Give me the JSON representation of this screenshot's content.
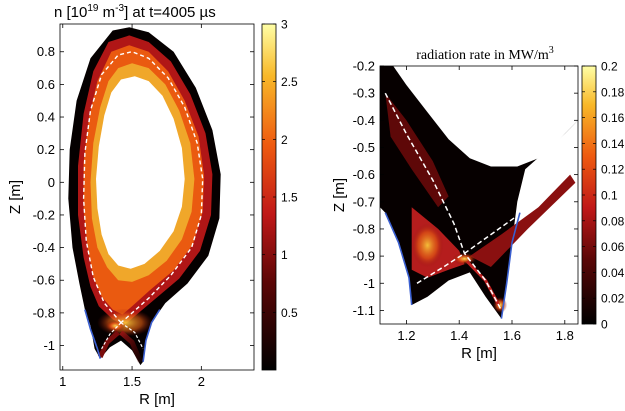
{
  "chart_data": [
    {
      "type": "heatmap",
      "title_parts": [
        "n [10",
        "19",
        " m",
        "-3",
        "] at t=4005 µs"
      ],
      "xlabel": "R [m]",
      "ylabel": "Z [m]",
      "xlim": [
        0.98,
        2.38
      ],
      "ylim": [
        -1.15,
        0.97
      ],
      "xticks": [
        1,
        1.5,
        2
      ],
      "yticks": [
        -1,
        -0.8,
        -0.6,
        -0.4,
        -0.2,
        0,
        0.2,
        0.4,
        0.6,
        0.8
      ],
      "colorbar": {
        "min": 0,
        "max": 3,
        "ticks": [
          0.5,
          1,
          1.5,
          2,
          2.5,
          3
        ]
      },
      "separatrix_style": "dashed-white",
      "wall_color": "#3a5fd0"
    },
    {
      "type": "heatmap",
      "title_parts": [
        "radiation rate in MW/m",
        "3"
      ],
      "xlabel": "R [m]",
      "ylabel": "Z [m]",
      "xlim": [
        1.1,
        1.85
      ],
      "ylim": [
        -1.15,
        -0.2
      ],
      "xticks": [
        1.2,
        1.4,
        1.6,
        1.8
      ],
      "yticks": [
        -1.1,
        -1,
        -0.9,
        -0.8,
        -0.7,
        -0.6,
        -0.5,
        -0.4,
        -0.3,
        -0.2
      ],
      "colorbar": {
        "min": 0,
        "max": 0.2,
        "ticks": [
          0,
          0.02,
          0.04,
          0.06,
          0.08,
          0.1,
          0.12,
          0.14,
          0.16,
          0.18,
          0.2
        ]
      },
      "separatrix_style": "dashed-white",
      "wall_color": "#3a5fd0"
    }
  ]
}
